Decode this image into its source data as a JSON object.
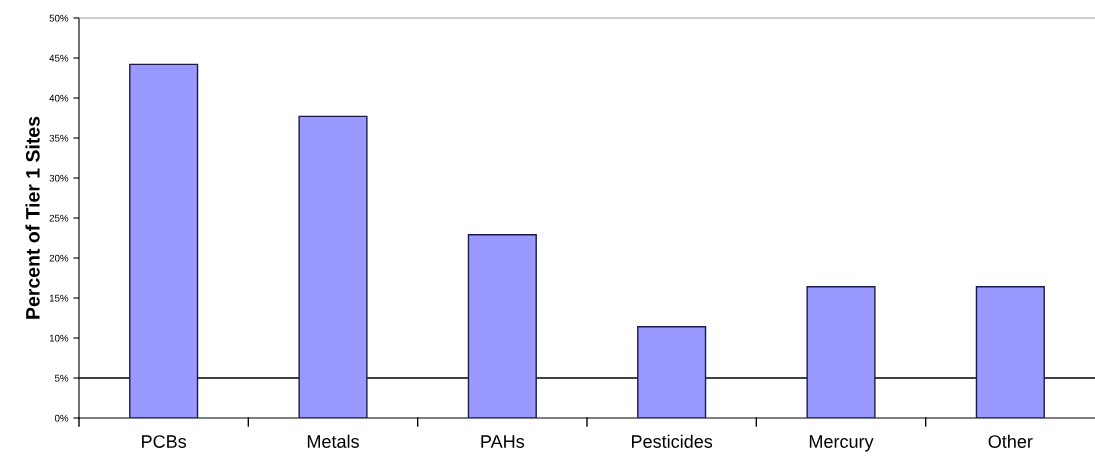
{
  "chart_data": {
    "type": "bar",
    "ylabel": "Percent of Tier 1 Sites",
    "categories": [
      "PCBs",
      "Metals",
      "PAHs",
      "Pesticides",
      "Mercury",
      "Other"
    ],
    "values": [
      44.2,
      37.7,
      22.9,
      11.4,
      16.4,
      16.4
    ],
    "color": "#9999ff",
    "ylim": [
      0,
      50
    ],
    "yticks": [
      {
        "value": 0,
        "label": "0%"
      },
      {
        "value": 5,
        "label": "5%"
      },
      {
        "value": 10,
        "label": "10%"
      },
      {
        "value": 15,
        "label": "15%"
      },
      {
        "value": 20,
        "label": "20%"
      },
      {
        "value": 25,
        "label": "25%"
      },
      {
        "value": 30,
        "label": "30%"
      },
      {
        "value": 35,
        "label": "35%"
      },
      {
        "value": 40,
        "label": "40%"
      },
      {
        "value": 45,
        "label": "45%"
      },
      {
        "value": 50,
        "label": "50%"
      }
    ],
    "ref_lines": [
      {
        "axis": "y",
        "value": 5,
        "color": "#000000"
      }
    ],
    "grid": false,
    "legend": false
  }
}
